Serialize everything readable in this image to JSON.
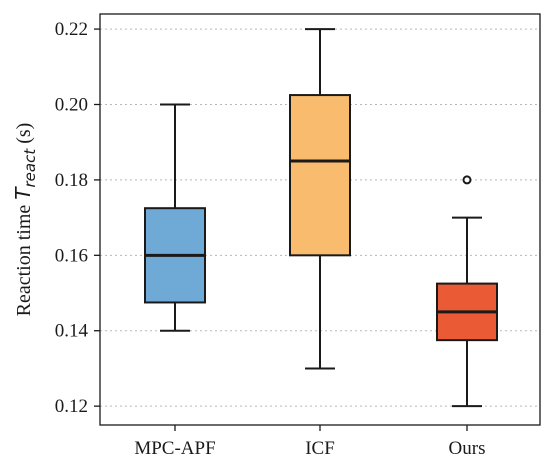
{
  "chart_data": {
    "type": "box",
    "categories": [
      "MPC-APF",
      "ICF",
      "Ours"
    ],
    "ylabel": {
      "prefix": "Reaction time ",
      "symbol": "T",
      "subscript": "react",
      "suffix": " (s)"
    },
    "ylim": [
      0.115,
      0.224
    ],
    "yticks": [
      0.12,
      0.14,
      0.16,
      0.18,
      0.2,
      0.22
    ],
    "ytick_labels": [
      "0.12",
      "0.14",
      "0.16",
      "0.18",
      "0.20",
      "0.22"
    ],
    "grid": "horizontal dotted",
    "boxes": [
      {
        "label": "MPC-APF",
        "whisker_low": 0.14,
        "q1": 0.1475,
        "median": 0.16,
        "q3": 0.1725,
        "whisker_high": 0.2,
        "outliers": [],
        "color": "#6faad6"
      },
      {
        "label": "ICF",
        "whisker_low": 0.13,
        "q1": 0.16,
        "median": 0.185,
        "q3": 0.2025,
        "whisker_high": 0.22,
        "outliers": [],
        "color": "#f9bb6e"
      },
      {
        "label": "Ours",
        "whisker_low": 0.12,
        "q1": 0.1375,
        "median": 0.145,
        "q3": 0.1525,
        "whisker_high": 0.17,
        "outliers": [
          0.18
        ],
        "color": "#ea5a35"
      }
    ]
  }
}
